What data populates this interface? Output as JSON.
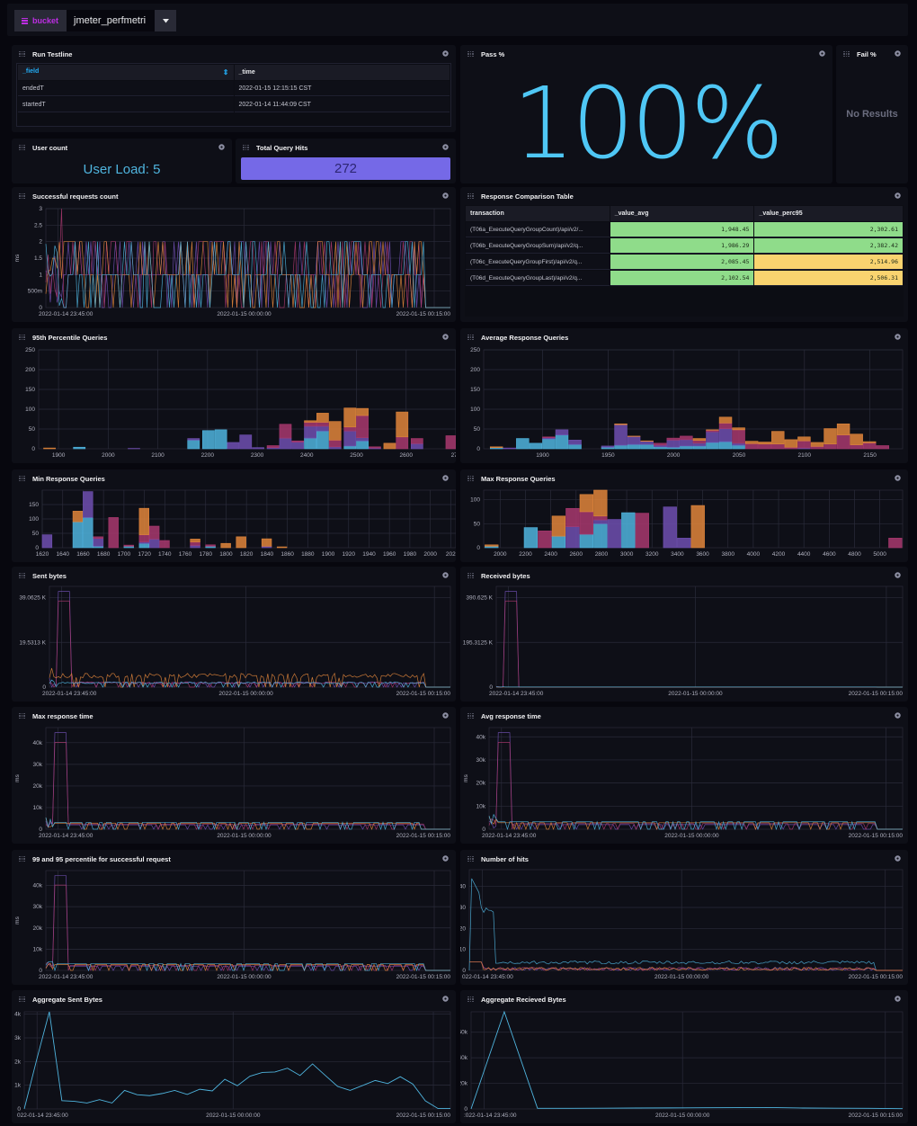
{
  "variables": {
    "label": "bucket",
    "value": "jmeter_perfmetri"
  },
  "colors": {
    "background": "#07070e",
    "panel": "#0e0f17",
    "grid": "#2a2b3a",
    "cyan": "#4fb4de",
    "purple": "#6f4fb0",
    "magenta": "#a8386e",
    "orange": "#e0853b",
    "pass_text": "#4fc7f5",
    "hits_box": "#7569e7",
    "table_green": "#8fdc8a",
    "table_yellow": "#f9d36f"
  },
  "cells": {
    "run_testline": {
      "title": "Run Testline",
      "columns": [
        "_field",
        "_time"
      ],
      "rows": [
        [
          "endedT",
          "2022-01-15 12:15:15 CST"
        ],
        [
          "startedT",
          "2022-01-14 11:44:09 CST"
        ]
      ]
    },
    "pass_pct": {
      "title": "Pass %",
      "value": "100%"
    },
    "fail_pct": {
      "title": "Fail %",
      "value": "No Results"
    },
    "user_count": {
      "title": "User count",
      "value": "User Load: 5"
    },
    "total_query_hits": {
      "title": "Total Query Hits",
      "value": "272"
    },
    "successful_requests": {
      "title": "Successful requests count",
      "ylabel": "ms"
    },
    "response_table": {
      "title": "Response Comparison Table",
      "columns": [
        "transaction",
        "_value_avg",
        "_value_perc95"
      ],
      "rows": [
        [
          "(T06a_ExecuteQueryGroupCount)/api/v2/...",
          "1,948.45",
          "2,302.61"
        ],
        [
          "(T06b_ExecuteQueryGroupSum)/api/v2/q...",
          "1,986.29",
          "2,382.42"
        ],
        [
          "(T06c_ExecuteQueryGroupFirst)/api/v2/q...",
          "2,085.45",
          "2,514.96"
        ],
        [
          "(T06d_ExecuteQueryGroupLast)/api/v2/q...",
          "2,102.54",
          "2,506.31"
        ]
      ]
    },
    "p95_queries": {
      "title": "95th Percentile Queries"
    },
    "avg_response_queries": {
      "title": "Average Response Queries"
    },
    "min_response_queries": {
      "title": "Min Response Queries"
    },
    "max_response_queries": {
      "title": "Max Response Queries"
    },
    "sent_bytes": {
      "title": "Sent bytes"
    },
    "received_bytes": {
      "title": "Received bytes"
    },
    "max_response_time": {
      "title": "Max response time",
      "ylabel": "ms"
    },
    "avg_response_time": {
      "title": "Avg response time",
      "ylabel": "ms"
    },
    "percentile_99_95": {
      "title": "99 and 95 percentile for successful request",
      "ylabel": "ms"
    },
    "number_of_hits": {
      "title": "Number of hits"
    },
    "aggregate_sent": {
      "title": "Aggregate Sent Bytes"
    },
    "aggregate_received": {
      "title": "Aggregate Recieved Bytes"
    }
  },
  "time_ticks": [
    "2022-01-14 23:45:00",
    "2022-01-15 00:00:00",
    "2022-01-15 00:15:00"
  ],
  "chart_data": [
    {
      "id": "successful_requests",
      "type": "line",
      "title": "Successful requests count",
      "ylabel": "ms",
      "yticks": [
        "0",
        "500m",
        "1",
        "1.5",
        "2",
        "2.5",
        "3"
      ],
      "ylim": [
        0,
        3
      ],
      "xticks": [
        "2022-01-14 23:45:00",
        "2022-01-15 00:00:00",
        "2022-01-15 00:15:00"
      ],
      "note": "multiple series oscillating between 0, 1 and 2; peak 3 near 23:45"
    },
    {
      "id": "p95_queries",
      "type": "bar",
      "title": "95th Percentile Queries",
      "yticks": [
        "0",
        "50",
        "100",
        "150",
        "200",
        "250"
      ],
      "ylim": [
        0,
        250
      ],
      "xticks": [
        "1900",
        "2000",
        "2100",
        "2200",
        "2300",
        "2400",
        "2500",
        "2600",
        "270"
      ],
      "xrange": [
        1860,
        2700
      ],
      "bins": [
        {
          "x": 1870,
          "cyan": 0,
          "purple": 0,
          "magenta": 0,
          "orange": 2
        },
        {
          "x": 1930,
          "cyan": 4,
          "purple": 0,
          "magenta": 0,
          "orange": 0
        },
        {
          "x": 2040,
          "cyan": 0,
          "purple": 1,
          "magenta": 0,
          "orange": 0
        },
        {
          "x": 2160,
          "cyan": 22,
          "purple": 4,
          "magenta": 0,
          "orange": 0
        },
        {
          "x": 2190,
          "cyan": 46,
          "purple": 0,
          "magenta": 0,
          "orange": 0
        },
        {
          "x": 2215,
          "cyan": 48,
          "purple": 0,
          "magenta": 0,
          "orange": 0
        },
        {
          "x": 2240,
          "cyan": 0,
          "purple": 16,
          "magenta": 0,
          "orange": 0
        },
        {
          "x": 2265,
          "cyan": 0,
          "purple": 35,
          "magenta": 0,
          "orange": 0
        },
        {
          "x": 2290,
          "cyan": 0,
          "purple": 3,
          "magenta": 0,
          "orange": 0
        },
        {
          "x": 2320,
          "cyan": 0,
          "purple": 3,
          "magenta": 5,
          "orange": 0
        },
        {
          "x": 2345,
          "cyan": 0,
          "purple": 27,
          "magenta": 35,
          "orange": 0
        },
        {
          "x": 2370,
          "cyan": 0,
          "purple": 17,
          "magenta": 3,
          "orange": 0
        },
        {
          "x": 2395,
          "cyan": 27,
          "purple": 30,
          "magenta": 10,
          "orange": 4
        },
        {
          "x": 2420,
          "cyan": 45,
          "purple": 12,
          "magenta": 10,
          "orange": 23
        },
        {
          "x": 2445,
          "cyan": 0,
          "purple": 5,
          "magenta": 17,
          "orange": 47
        },
        {
          "x": 2475,
          "cyan": 7,
          "purple": 38,
          "magenta": 10,
          "orange": 48
        },
        {
          "x": 2500,
          "cyan": 20,
          "purple": 8,
          "magenta": 56,
          "orange": 18
        },
        {
          "x": 2525,
          "cyan": 0,
          "purple": 2,
          "magenta": 3,
          "orange": 0
        },
        {
          "x": 2555,
          "cyan": 0,
          "purple": 0,
          "magenta": 0,
          "orange": 14
        },
        {
          "x": 2580,
          "cyan": 0,
          "purple": 0,
          "magenta": 30,
          "orange": 63
        },
        {
          "x": 2610,
          "cyan": 0,
          "purple": 13,
          "magenta": 13,
          "orange": 0
        },
        {
          "x": 2680,
          "cyan": 0,
          "purple": 0,
          "magenta": 33,
          "orange": 0
        }
      ]
    },
    {
      "id": "avg_response_queries",
      "type": "bar",
      "title": "Average Response Queries",
      "yticks": [
        "0",
        "50",
        "100",
        "150",
        "200",
        "250"
      ],
      "ylim": [
        0,
        250
      ],
      "xticks": [
        "1900",
        "1950",
        "2000",
        "2050",
        "2100",
        "2150"
      ],
      "xrange": [
        1855,
        2175
      ],
      "bins": [
        {
          "x": 1860,
          "cyan": 3,
          "purple": 0,
          "magenta": 0,
          "orange": 2
        },
        {
          "x": 1870,
          "cyan": 0,
          "purple": 2,
          "magenta": 0,
          "orange": 0
        },
        {
          "x": 1880,
          "cyan": 26,
          "purple": 0,
          "magenta": 0,
          "orange": 0
        },
        {
          "x": 1890,
          "cyan": 14,
          "purple": 0,
          "magenta": 0,
          "orange": 0
        },
        {
          "x": 1900,
          "cyan": 25,
          "purple": 3,
          "magenta": 2,
          "orange": 0
        },
        {
          "x": 1910,
          "cyan": 35,
          "purple": 13,
          "magenta": 0,
          "orange": 0
        },
        {
          "x": 1920,
          "cyan": 11,
          "purple": 11,
          "magenta": 0,
          "orange": 0
        },
        {
          "x": 1945,
          "cyan": 4,
          "purple": 3,
          "magenta": 0,
          "orange": 0
        },
        {
          "x": 1955,
          "cyan": 9,
          "purple": 52,
          "magenta": 0,
          "orange": 2
        },
        {
          "x": 1965,
          "cyan": 11,
          "purple": 20,
          "magenta": 0,
          "orange": 1
        },
        {
          "x": 1975,
          "cyan": 11,
          "purple": 8,
          "magenta": 0,
          "orange": 1
        },
        {
          "x": 1985,
          "cyan": 5,
          "purple": 4,
          "magenta": 5,
          "orange": 0
        },
        {
          "x": 1995,
          "cyan": 4,
          "purple": 18,
          "magenta": 5,
          "orange": 0
        },
        {
          "x": 2005,
          "cyan": 7,
          "purple": 16,
          "magenta": 9,
          "orange": 0
        },
        {
          "x": 2015,
          "cyan": 7,
          "purple": 7,
          "magenta": 7,
          "orange": 5
        },
        {
          "x": 2025,
          "cyan": 16,
          "purple": 27,
          "magenta": 4,
          "orange": 1
        },
        {
          "x": 2035,
          "cyan": 18,
          "purple": 33,
          "magenta": 14,
          "orange": 15
        },
        {
          "x": 2045,
          "cyan": 9,
          "purple": 5,
          "magenta": 34,
          "orange": 5
        },
        {
          "x": 2055,
          "cyan": 0,
          "purple": 0,
          "magenta": 13,
          "orange": 6
        },
        {
          "x": 2065,
          "cyan": 0,
          "purple": 0,
          "magenta": 12,
          "orange": 5
        },
        {
          "x": 2075,
          "cyan": 0,
          "purple": 0,
          "magenta": 12,
          "orange": 32
        },
        {
          "x": 2085,
          "cyan": 0,
          "purple": 0,
          "magenta": 4,
          "orange": 19
        },
        {
          "x": 2095,
          "cyan": 0,
          "purple": 2,
          "magenta": 18,
          "orange": 10
        },
        {
          "x": 2105,
          "cyan": 0,
          "purple": 0,
          "magenta": 6,
          "orange": 10
        },
        {
          "x": 2115,
          "cyan": 0,
          "purple": 0,
          "magenta": 12,
          "orange": 39
        },
        {
          "x": 2125,
          "cyan": 0,
          "purple": 0,
          "magenta": 35,
          "orange": 28
        },
        {
          "x": 2135,
          "cyan": 0,
          "purple": 0,
          "magenta": 10,
          "orange": 27
        },
        {
          "x": 2145,
          "cyan": 0,
          "purple": 0,
          "magenta": 15,
          "orange": 3
        },
        {
          "x": 2155,
          "cyan": 0,
          "purple": 0,
          "magenta": 8,
          "orange": 0
        }
      ]
    },
    {
      "id": "min_response_queries",
      "type": "bar",
      "title": "Min Response Queries",
      "yticks": [
        "0",
        "50",
        "100",
        "150"
      ],
      "ylim": [
        0,
        200
      ],
      "xticks": [
        "1620",
        "1640",
        "1660",
        "1680",
        "1700",
        "1720",
        "1740",
        "1760",
        "1780",
        "1800",
        "1820",
        "1840",
        "1860",
        "1880",
        "1900",
        "1920",
        "1940",
        "1960",
        "1980",
        "2000",
        "202"
      ],
      "xrange": [
        1620,
        2025
      ],
      "bins": [
        {
          "x": 1620,
          "cyan": 0,
          "purple": 45,
          "magenta": 0,
          "orange": 0
        },
        {
          "x": 1650,
          "cyan": 90,
          "purple": 0,
          "magenta": 0,
          "orange": 37
        },
        {
          "x": 1660,
          "cyan": 105,
          "purple": 90,
          "magenta": 0,
          "orange": 0
        },
        {
          "x": 1670,
          "cyan": 5,
          "purple": 27,
          "magenta": 6,
          "orange": 0
        },
        {
          "x": 1685,
          "cyan": 0,
          "purple": 0,
          "magenta": 105,
          "orange": 0
        },
        {
          "x": 1700,
          "cyan": 5,
          "purple": 0,
          "magenta": 4,
          "orange": 0
        },
        {
          "x": 1715,
          "cyan": 15,
          "purple": 5,
          "magenta": 25,
          "orange": 92
        },
        {
          "x": 1725,
          "cyan": 0,
          "purple": 30,
          "magenta": 45,
          "orange": 0
        },
        {
          "x": 1735,
          "cyan": 0,
          "purple": 0,
          "magenta": 25,
          "orange": 0
        },
        {
          "x": 1765,
          "cyan": 0,
          "purple": 8,
          "magenta": 12,
          "orange": 10
        },
        {
          "x": 1780,
          "cyan": 5,
          "purple": 0,
          "magenta": 5,
          "orange": 0
        },
        {
          "x": 1795,
          "cyan": 0,
          "purple": 0,
          "magenta": 0,
          "orange": 15
        },
        {
          "x": 1810,
          "cyan": 0,
          "purple": 0,
          "magenta": 0,
          "orange": 38
        },
        {
          "x": 1835,
          "cyan": 0,
          "purple": 5,
          "magenta": 0,
          "orange": 26
        },
        {
          "x": 1850,
          "cyan": 0,
          "purple": 0,
          "magenta": 0,
          "orange": 3
        }
      ]
    },
    {
      "id": "max_response_queries",
      "type": "bar",
      "title": "Max Response Queries",
      "yticks": [
        "0",
        "50",
        "100"
      ],
      "ylim": [
        0,
        120
      ],
      "xticks": [
        "2000",
        "2200",
        "2400",
        "2600",
        "2800",
        "3000",
        "3200",
        "3400",
        "3600",
        "3800",
        "4000",
        "4200",
        "4400",
        "4600",
        "4800",
        "5000"
      ],
      "xrange": [
        1870,
        5180
      ],
      "bins": [
        {
          "x": 1880,
          "cyan": 3,
          "purple": 0,
          "magenta": 0,
          "orange": 3
        },
        {
          "x": 2190,
          "cyan": 42,
          "purple": 0,
          "magenta": 0,
          "orange": 0
        },
        {
          "x": 2300,
          "cyan": 0,
          "purple": 0,
          "magenta": 35,
          "orange": 0
        },
        {
          "x": 2410,
          "cyan": 24,
          "purple": 0,
          "magenta": 0,
          "orange": 42
        },
        {
          "x": 2520,
          "cyan": 0,
          "purple": 44,
          "magenta": 38,
          "orange": 0
        },
        {
          "x": 2630,
          "cyan": 28,
          "purple": 0,
          "magenta": 47,
          "orange": 36
        },
        {
          "x": 2740,
          "cyan": 50,
          "purple": 8,
          "magenta": 8,
          "orange": 54
        },
        {
          "x": 2850,
          "cyan": 0,
          "purple": 59,
          "magenta": 0,
          "orange": 0
        },
        {
          "x": 2960,
          "cyan": 73,
          "purple": 0,
          "magenta": 0,
          "orange": 0
        },
        {
          "x": 3070,
          "cyan": 0,
          "purple": 0,
          "magenta": 72,
          "orange": 0
        },
        {
          "x": 3290,
          "cyan": 0,
          "purple": 85,
          "magenta": 0,
          "orange": 0
        },
        {
          "x": 3400,
          "cyan": 0,
          "purple": 20,
          "magenta": 0,
          "orange": 0
        },
        {
          "x": 3510,
          "cyan": 0,
          "purple": 0,
          "magenta": 0,
          "orange": 88
        },
        {
          "x": 5070,
          "cyan": 0,
          "purple": 0,
          "magenta": 20,
          "orange": 0
        }
      ]
    },
    {
      "id": "sent_bytes",
      "type": "line",
      "title": "Sent bytes",
      "yticks": [
        "0",
        "19.5313 K",
        "39.0625 K"
      ],
      "ylim": [
        0,
        44000
      ],
      "xticks": [
        "2022-01-14 23:45:00",
        "2022-01-15 00:00:00",
        "2022-01-15 00:15:00"
      ]
    },
    {
      "id": "received_bytes",
      "type": "line",
      "title": "Received bytes",
      "yticks": [
        "0",
        "195.3125 K",
        "390.625 K"
      ],
      "ylim": [
        0,
        440000
      ],
      "xticks": [
        "2022-01-14 23:45:00",
        "2022-01-15 00:00:00",
        "2022-01-15 00:15:00"
      ]
    },
    {
      "id": "max_response_time",
      "type": "line",
      "title": "Max response time",
      "ylabel": "ms",
      "yticks": [
        "0",
        "10k",
        "20k",
        "30k",
        "40k"
      ],
      "ylim": [
        0,
        47000
      ],
      "xticks": [
        "2022-01-14 23:45:00",
        "2022-01-15 00:00:00",
        "2022-01-15 00:15:00"
      ]
    },
    {
      "id": "avg_response_time",
      "type": "line",
      "title": "Avg response time",
      "ylabel": "ms",
      "yticks": [
        "0",
        "10k",
        "20k",
        "30k",
        "40k"
      ],
      "ylim": [
        0,
        44000
      ],
      "xticks": [
        "2022-01-14 23:45:00",
        "2022-01-15 00:00:00",
        "2022-01-15 00:15:00"
      ]
    },
    {
      "id": "percentile_99_95",
      "type": "line",
      "title": "99 and 95 percentile for successful request",
      "ylabel": "ms",
      "yticks": [
        "0",
        "10k",
        "20k",
        "30k",
        "40k"
      ],
      "ylim": [
        0,
        47000
      ],
      "xticks": [
        "2022-01-14 23:45:00",
        "2022-01-15 00:00:00",
        "2022-01-15 00:15:00"
      ]
    },
    {
      "id": "number_of_hits",
      "type": "line",
      "title": "Number of hits",
      "yticks": [
        "0",
        "10",
        "20",
        "30",
        "40"
      ],
      "ylim": [
        0,
        48
      ],
      "xticks": [
        "022-01-14 23:45:00",
        "2022-01-15 00:00:00",
        "2022-01-15 00:15:00"
      ]
    },
    {
      "id": "aggregate_sent",
      "type": "line",
      "title": "Aggregate Sent Bytes",
      "yticks": [
        "0",
        "1k",
        "2k",
        "3k",
        "4k"
      ],
      "ylim": [
        0,
        4100
      ],
      "xticks": [
        "022-01-14 23:45:00",
        "2022-01-15 00:00:00",
        "2022-01-15 00:15:00"
      ],
      "values": [
        0,
        2100,
        4100,
        350,
        320,
        250,
        390,
        250,
        780,
        600,
        560,
        650,
        780,
        610,
        830,
        760,
        1250,
        980,
        1380,
        1540,
        1560,
        1720,
        1410,
        1900,
        1420,
        950,
        780,
        990,
        1200,
        1070,
        1360,
        1050,
        340,
        20,
        20
      ]
    },
    {
      "id": "aggregate_received",
      "type": "line",
      "title": "Aggregate Recieved Bytes",
      "yticks": [
        "0",
        "20k",
        "40k",
        "60k"
      ],
      "ylim": [
        0,
        76000
      ],
      "xticks": [
        ":022-01-14 23:45:00",
        "2022-01-15 00:00:00",
        "2022-01-15 00:15:00"
      ],
      "values": [
        0,
        76000,
        500,
        500,
        600,
        700,
        800,
        900,
        1000,
        1100,
        700,
        600,
        500,
        200
      ]
    }
  ]
}
